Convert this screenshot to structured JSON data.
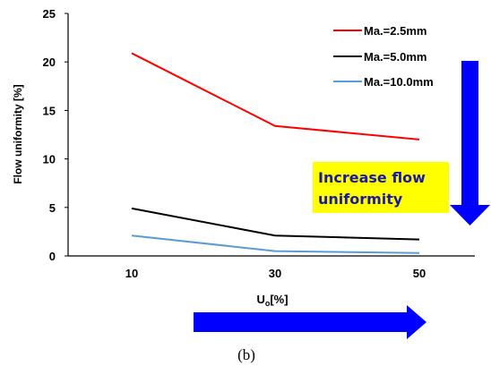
{
  "chart_data": {
    "type": "line",
    "x": [
      10,
      30,
      50
    ],
    "xlabel_main": "U",
    "xlabel_sub": "o",
    "xlabel_rest": "[%]",
    "ylabel": "Flow uniformity  [%]",
    "ylim": [
      0,
      25
    ],
    "yticks": [
      "0",
      "5",
      "10",
      "15",
      "20",
      "25"
    ],
    "xticks": [
      "10",
      "30",
      "50"
    ],
    "grid": false,
    "legend_position": "top-right",
    "series": [
      {
        "name": "Ma.=2.5mm",
        "color": "#ff0000",
        "values": [
          20.9,
          13.4,
          12.0
        ]
      },
      {
        "name": "Ma.=5.0mm",
        "color": "#000000",
        "values": [
          4.9,
          2.1,
          1.7
        ]
      },
      {
        "name": "Ma.=10.0mm",
        "color": "#5b9bd5",
        "values": [
          2.1,
          0.5,
          0.3
        ]
      }
    ]
  },
  "annotation": {
    "line1": "Increase flow",
    "line2": "uniformity",
    "box_color": "#ffff00",
    "text_color": "#1a1aa6"
  },
  "arrows": {
    "color": "#0000ff"
  },
  "caption": "(b)"
}
